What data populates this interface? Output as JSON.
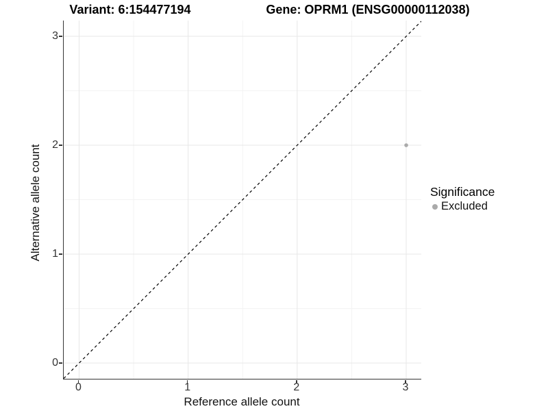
{
  "chart_data": {
    "type": "scatter",
    "title_left": "Variant: 6:154477194",
    "title_right": "Gene: OPRM1 (ENSG00000112038)",
    "xlabel": "Reference allele count",
    "ylabel": "Alternative allele count",
    "x_ticks": [
      0,
      1,
      2,
      3
    ],
    "y_ticks": [
      0,
      1,
      2,
      3
    ],
    "xlim": [
      -0.14,
      3.14
    ],
    "ylim": [
      -0.14,
      3.14
    ],
    "grid": "major+minor",
    "reference_line": {
      "type": "abline",
      "slope": 1,
      "intercept": 0,
      "style": "dashed",
      "color": "#000000"
    },
    "points": [
      {
        "x": 3,
        "y": 2,
        "significance": "Excluded"
      }
    ],
    "point_color": "#aaaaaa",
    "legend": {
      "title": "Significance",
      "position": "right",
      "entries": [
        {
          "label": "Excluded",
          "color": "#aaaaaa",
          "marker": "circle"
        }
      ]
    },
    "colors": {
      "background": "#ffffff",
      "axis_line": "#333333",
      "grid_major": "#e7e7e7",
      "grid_minor": "#f3f3f3",
      "tick_text": "#333333"
    }
  }
}
